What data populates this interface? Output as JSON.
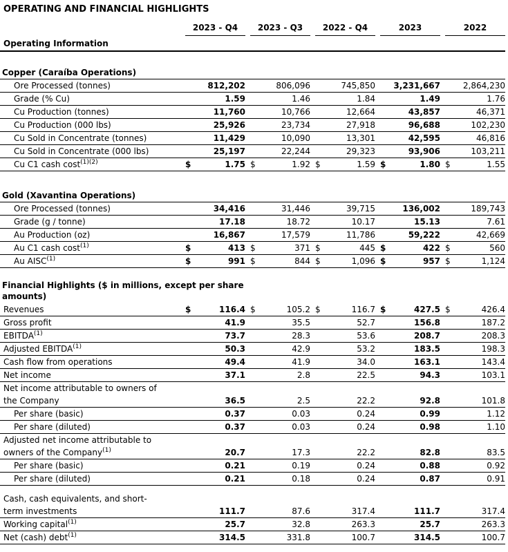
{
  "page": {
    "title": "OPERATING AND FINANCIAL HIGHLIGHTS"
  },
  "colors": {
    "text": "#000000",
    "background": "#ffffff",
    "border": "#000000"
  },
  "table": {
    "currency_symbol": "$",
    "columns": [
      "2023 - Q4",
      "2023 - Q3",
      "2022 - Q4",
      "2023",
      "2022"
    ],
    "group_label": "Operating Information",
    "bold_columns": [
      0,
      3
    ],
    "sections": [
      {
        "title": "Copper (Caraíba Operations)",
        "rows": [
          {
            "label": "Ore Processed (tonnes)",
            "indent": true,
            "values": [
              "812,202",
              "806,096",
              "745,850",
              "3,231,667",
              "2,864,230"
            ]
          },
          {
            "label": "Grade (% Cu)",
            "indent": true,
            "values": [
              "1.59",
              "1.46",
              "1.84",
              "1.49",
              "1.76"
            ]
          },
          {
            "label": "Cu Production (tonnes)",
            "indent": true,
            "values": [
              "11,760",
              "10,766",
              "12,664",
              "43,857",
              "46,371"
            ]
          },
          {
            "label": "Cu Production (000 lbs)",
            "indent": true,
            "values": [
              "25,926",
              "23,734",
              "27,918",
              "96,688",
              "102,230"
            ]
          },
          {
            "label": "Cu Sold in Concentrate (tonnes)",
            "indent": true,
            "values": [
              "11,429",
              "10,090",
              "13,301",
              "42,595",
              "46,816"
            ]
          },
          {
            "label": "Cu Sold in Concentrate (000 lbs)",
            "indent": true,
            "values": [
              "25,197",
              "22,244",
              "29,323",
              "93,906",
              "103,211"
            ]
          },
          {
            "label": "Cu C1 cash cost",
            "sup": "(1)(2)",
            "indent": true,
            "dollar": true,
            "values": [
              "1.75",
              "1.92",
              "1.59",
              "1.80",
              "1.55"
            ]
          }
        ]
      },
      {
        "title": "Gold (Xavantina Operations)",
        "rows": [
          {
            "label": "Ore Processed (tonnes)",
            "indent": true,
            "values": [
              "34,416",
              "31,446",
              "39,715",
              "136,002",
              "189,743"
            ]
          },
          {
            "label": "Grade (g / tonne)",
            "indent": true,
            "values": [
              "17.18",
              "18.72",
              "10.17",
              "15.13",
              "7.61"
            ]
          },
          {
            "label": "Au Production (oz)",
            "indent": true,
            "values": [
              "16,867",
              "17,579",
              "11,786",
              "59,222",
              "42,669"
            ]
          },
          {
            "label": "Au C1 cash cost",
            "sup": "(1)",
            "indent": true,
            "dollar": true,
            "values": [
              "413",
              "371",
              "445",
              "422",
              "560"
            ]
          },
          {
            "label": "Au AISC",
            "sup": "(1)",
            "indent": true,
            "dollar": true,
            "values": [
              "991",
              "844",
              "1,096",
              "957",
              "1,124"
            ]
          }
        ]
      },
      {
        "title": "Financial Highlights ($ in millions, except per share\namounts)",
        "title_wide": true,
        "no_title_border": true,
        "rows": [
          {
            "label": "Revenues",
            "dollar": true,
            "values": [
              "116.4",
              "105.2",
              "116.7",
              "427.5",
              "426.4"
            ]
          },
          {
            "label": "Gross profit",
            "values": [
              "41.9",
              "35.5",
              "52.7",
              "156.8",
              "187.2"
            ]
          },
          {
            "label": "EBITDA",
            "sup": "(1)",
            "values": [
              "73.7",
              "28.3",
              "53.6",
              "208.7",
              "208.3"
            ]
          },
          {
            "label": "Adjusted EBITDA",
            "sup": "(1)",
            "values": [
              "50.3",
              "42.9",
              "53.2",
              "183.5",
              "198.3"
            ]
          },
          {
            "label": "Cash flow from operations",
            "values": [
              "49.4",
              "41.9",
              "34.0",
              "163.1",
              "143.4"
            ]
          },
          {
            "label": "Net income",
            "values": [
              "37.1",
              "2.8",
              "22.5",
              "94.3",
              "103.1"
            ]
          },
          {
            "label": "Net income attributable to owners of\nthe Company",
            "values": [
              "36.5",
              "2.5",
              "22.2",
              "92.8",
              "101.8"
            ]
          },
          {
            "label": "Per share (basic)",
            "indent": true,
            "values": [
              "0.37",
              "0.03",
              "0.24",
              "0.99",
              "1.12"
            ]
          },
          {
            "label": "Per share (diluted)",
            "indent": true,
            "values": [
              "0.37",
              "0.03",
              "0.24",
              "0.98",
              "1.10"
            ]
          },
          {
            "label": "Adjusted net income attributable to\nowners of the Company",
            "sup": "(1)",
            "values": [
              "20.7",
              "17.3",
              "22.2",
              "82.8",
              "83.5"
            ]
          },
          {
            "label": "Per share (basic)",
            "indent": true,
            "values": [
              "0.21",
              "0.19",
              "0.24",
              "0.88",
              "0.92"
            ]
          },
          {
            "label": "Per share (diluted)",
            "indent": true,
            "values": [
              "0.21",
              "0.18",
              "0.24",
              "0.87",
              "0.91"
            ]
          }
        ]
      },
      {
        "title": "",
        "rows": [
          {
            "label": "Cash, cash equivalents, and short-\nterm investments",
            "values": [
              "111.7",
              "87.6",
              "317.4",
              "111.7",
              "317.4"
            ]
          },
          {
            "label": "Working capital",
            "sup": "(1)",
            "values": [
              "25.7",
              "32.8",
              "263.3",
              "25.7",
              "263.3"
            ]
          },
          {
            "label": "Net (cash) debt",
            "sup": "(1)",
            "values": [
              "314.5",
              "331.8",
              "100.7",
              "314.5",
              "100.7"
            ]
          }
        ]
      }
    ]
  }
}
